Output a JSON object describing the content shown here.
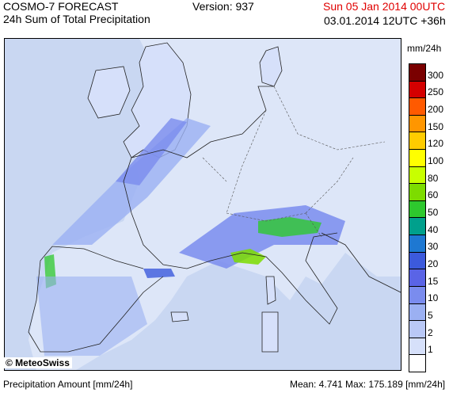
{
  "header": {
    "model": "COSMO-7 FORECAST",
    "product": "24h Sum of Total Precipitation",
    "version": "Version: 937",
    "valid_date": "Sun 05 Jan 2014 00UTC",
    "run_info": "03.01.2014 12UTC +36h",
    "valid_date_color": "#e00000"
  },
  "map": {
    "copyright": "© MeteoSwiss",
    "sea_color": "#c9d7f2"
  },
  "legend": {
    "unit": "mm/24h",
    "classes": [
      {
        "label": "300",
        "color": "#7a0000"
      },
      {
        "label": "250",
        "color": "#d40000"
      },
      {
        "label": "200",
        "color": "#ff5a00"
      },
      {
        "label": "150",
        "color": "#ff9600"
      },
      {
        "label": "120",
        "color": "#ffcc00"
      },
      {
        "label": "100",
        "color": "#ffff00"
      },
      {
        "label": "80",
        "color": "#c8ff00"
      },
      {
        "label": "60",
        "color": "#7ddc00"
      },
      {
        "label": "50",
        "color": "#2ec82e"
      },
      {
        "label": "40",
        "color": "#00a08c"
      },
      {
        "label": "30",
        "color": "#1e78d2"
      },
      {
        "label": "20",
        "color": "#3c5adc"
      },
      {
        "label": "15",
        "color": "#5a64e6"
      },
      {
        "label": "10",
        "color": "#7a8cee"
      },
      {
        "label": "5",
        "color": "#9bb0f2"
      },
      {
        "label": "2",
        "color": "#b9c8f6"
      },
      {
        "label": "1",
        "color": "#d6e0fa"
      },
      {
        "label": "",
        "color": "#ffffff"
      }
    ]
  },
  "footer": {
    "amount_label": "Precipitation Amount [mm/24h]",
    "stats": "Mean:   4.741 Max: 175.189 [mm/24h]"
  }
}
